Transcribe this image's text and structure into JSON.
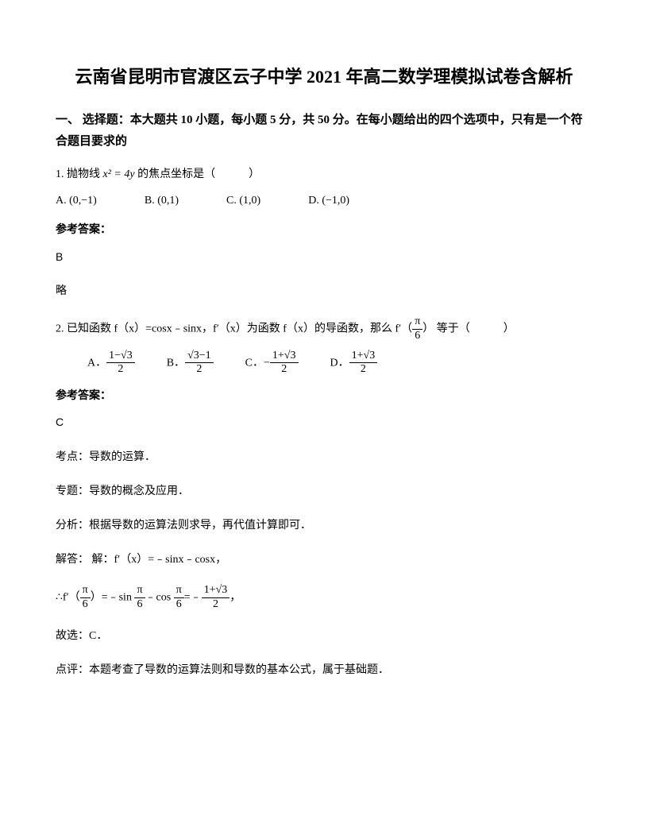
{
  "title": "云南省昆明市官渡区云子中学 2021 年高二数学理模拟试卷含解析",
  "section1": {
    "header": "一、 选择题：本大题共 10 小题，每小题 5 分，共 50 分。在每小题给出的四个选项中，只有是一个符合题目要求的"
  },
  "q1": {
    "text_prefix": "1. 抛物线 ",
    "formula": "x² = 4y",
    "text_suffix": " 的焦点坐标是（　　　）",
    "optA": "A. ",
    "optA_val": "(0,−1)",
    "optB": "B. ",
    "optB_val": "(0,1)",
    "optC": "C. ",
    "optC_val": "(1,0)",
    "optD": "D. ",
    "optD_val": "(−1,0)",
    "answer_label": "参考答案：",
    "answer": "B",
    "brief": "略"
  },
  "q2": {
    "text_prefix": "2. 已知函数 f（x）=cosx﹣sinx，f′（x）为函数 f（x）的导函数，那么 ",
    "formula_end": "f′（",
    "pi6_num": "π",
    "pi6_den": "6",
    "formula_close": "）",
    "text_suffix": " 等于（　　　）",
    "optA_label": "A．",
    "optA_num": "1−√3",
    "optA_den": "2",
    "optB_label": "B．",
    "optB_num": "√3−1",
    "optB_den": "2",
    "optC_label": "C．",
    "optC_prefix": "−",
    "optC_num": "1+√3",
    "optC_den": "2",
    "optD_label": "D．",
    "optD_num": "1+√3",
    "optD_den": "2",
    "answer_label": "参考答案：",
    "answer": "C",
    "kaodian_label": "考点：",
    "kaodian": "导数的运算．",
    "zhuanti_label": "专题：",
    "zhuanti": "导数的概念及应用．",
    "fenxi_label": "分析：",
    "fenxi": "根据导数的运算法则求导，再代值计算即可．",
    "jieda_label": "解答：",
    "jieda_prefix": " 解：f′（x）=﹣sinx﹣cosx，",
    "therefore": "∴f′（",
    "step_num1": "π",
    "step_den1": "6",
    "step_mid1": "）=﹣sin ",
    "step_num2": "π",
    "step_den2": "6",
    "step_mid2": "﹣cos ",
    "step_num3": "π",
    "step_den3": "6",
    "step_mid3": "=﹣",
    "step_num4": "1+√3",
    "step_den4": "2",
    "step_end": "，",
    "guxuan": "故选：C．",
    "dianping_label": "点评：",
    "dianping": "本题考查了导数的运算法则和导数的基本公式，属于基础题．"
  }
}
